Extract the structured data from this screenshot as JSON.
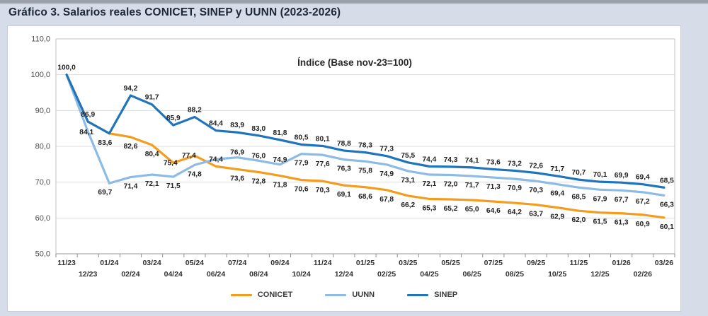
{
  "page": {
    "heading": "Gráfico 3. Salarios reales CONICET, SINEP y UUNN (2023-2026)"
  },
  "chart_data": {
    "type": "line",
    "title": "Índice (Base nov-23=100)",
    "grid": true,
    "legend_position": "bottom",
    "x_categories": [
      "11/23",
      "12/23",
      "01/24",
      "02/24",
      "03/24",
      "04/24",
      "05/24",
      "06/24",
      "07/24",
      "08/24",
      "09/24",
      "10/24",
      "11/24",
      "12/24",
      "01/25",
      "02/25",
      "03/25",
      "04/25",
      "05/25",
      "06/25",
      "07/25",
      "08/25",
      "09/25",
      "10/25",
      "11/25",
      "12/25",
      "01/26",
      "02/26",
      "03/26"
    ],
    "y_axis": {
      "min": 50,
      "max": 110,
      "step": 10,
      "tick_labels": [
        "110,0",
        "100,0",
        "90,0",
        "80,0",
        "70,0",
        "60,0",
        "50,0"
      ]
    },
    "colors": {
      "conicet": "#f39c1e",
      "uunn": "#8cbbe6",
      "sinep": "#1f74bc",
      "gridline": "#dcdcdc",
      "axis": "#8c8c8c",
      "label_text": "#212121"
    },
    "series": [
      {
        "name": "CONICET",
        "color": "#f39c1e",
        "points": [
          {
            "v": 100.0
          },
          {
            "v": 86.9
          },
          {
            "v": 83.6
          },
          {
            "v": 82.6,
            "l": "82,6",
            "p": "b"
          },
          {
            "v": 80.4,
            "l": "80,4",
            "p": "b"
          },
          {
            "v": 75.4,
            "l": "75,4",
            "o": 3,
            "dx": -4
          },
          {
            "v": 77.4,
            "l": "77,4",
            "o": 3,
            "dx": -8
          },
          {
            "v": 74.4,
            "l": "74,4",
            "p": "a"
          },
          {
            "v": 73.6,
            "l": "73,6",
            "p": "b"
          },
          {
            "v": 72.8,
            "l": "72,8",
            "p": "b"
          },
          {
            "v": 71.8,
            "l": "71,8",
            "p": "b"
          },
          {
            "v": 70.6,
            "l": "70,6",
            "p": "b"
          },
          {
            "v": 70.3,
            "l": "70,3",
            "p": "b"
          },
          {
            "v": 69.1,
            "l": "69,1",
            "p": "b"
          },
          {
            "v": 68.6,
            "l": "68,6",
            "p": "b"
          },
          {
            "v": 67.8,
            "l": "67,8",
            "p": "b"
          },
          {
            "v": 66.2,
            "l": "66,2",
            "p": "b"
          },
          {
            "v": 65.3,
            "l": "65,3",
            "p": "b"
          },
          {
            "v": 65.2,
            "l": "65,2",
            "p": "b"
          },
          {
            "v": 65.0,
            "l": "65,0",
            "p": "b"
          },
          {
            "v": 64.6,
            "l": "64,6",
            "p": "b"
          },
          {
            "v": 64.2,
            "l": "64,2",
            "p": "b"
          },
          {
            "v": 63.7,
            "l": "63,7",
            "p": "b"
          },
          {
            "v": 62.9,
            "l": "62,9",
            "p": "b"
          },
          {
            "v": 62.0,
            "l": "62,0",
            "p": "b"
          },
          {
            "v": 61.5,
            "l": "61,5",
            "p": "b"
          },
          {
            "v": 61.3,
            "l": "61,3",
            "p": "b"
          },
          {
            "v": 60.9,
            "l": "60,9",
            "p": "b"
          },
          {
            "v": 60.1,
            "l": "60,1",
            "p": "b",
            "dx": 4
          }
        ]
      },
      {
        "name": "UUNN",
        "color": "#8cbbe6",
        "points": [
          {
            "v": 100.0
          },
          {
            "v": 84.1,
            "l": "84,1",
            "p": "c",
            "dx": -2
          },
          {
            "v": 69.7,
            "l": "69,7",
            "p": "b",
            "dx": -6
          },
          {
            "v": 71.4,
            "l": "71,4",
            "p": "b"
          },
          {
            "v": 72.1,
            "l": "72,1",
            "p": "b"
          },
          {
            "v": 71.5,
            "l": "71,5",
            "p": "b"
          },
          {
            "v": 74.8,
            "l": "74,8",
            "p": "b"
          },
          {
            "v": 76.4
          },
          {
            "v": 76.9,
            "l": "76,9",
            "o": -4
          },
          {
            "v": 76.0,
            "l": "76,0",
            "o": -4
          },
          {
            "v": 74.9,
            "l": "74,9",
            "o": -4
          },
          {
            "v": 77.9,
            "l": "77,9",
            "p": "b"
          },
          {
            "v": 77.6,
            "l": "77,6",
            "p": "b"
          },
          {
            "v": 76.3,
            "l": "76,3",
            "p": "b"
          },
          {
            "v": 75.8,
            "l": "75,8",
            "p": "b"
          },
          {
            "v": 74.9,
            "l": "74,9",
            "p": "b"
          },
          {
            "v": 73.1,
            "l": "73,1",
            "p": "b"
          },
          {
            "v": 72.1,
            "l": "72,1",
            "p": "b"
          },
          {
            "v": 72.0,
            "l": "72,0",
            "p": "b"
          },
          {
            "v": 71.7,
            "l": "71,7",
            "p": "b"
          },
          {
            "v": 71.3,
            "l": "71,3",
            "p": "b"
          },
          {
            "v": 70.9,
            "l": "70,9",
            "p": "b"
          },
          {
            "v": 70.3,
            "l": "70,3",
            "p": "b"
          },
          {
            "v": 69.4,
            "l": "69,4",
            "p": "b"
          },
          {
            "v": 68.5,
            "l": "68,5",
            "p": "b"
          },
          {
            "v": 67.9,
            "l": "67,9",
            "p": "b"
          },
          {
            "v": 67.7,
            "l": "67,7",
            "p": "b"
          },
          {
            "v": 67.2,
            "l": "67,2",
            "p": "b"
          },
          {
            "v": 66.3,
            "l": "66,3",
            "p": "b",
            "dx": 4
          }
        ]
      },
      {
        "name": "SINEP",
        "color": "#1f74bc",
        "points": [
          {
            "v": 100.0,
            "l": "100,0",
            "p": "a"
          },
          {
            "v": 86.9,
            "l": "86,9",
            "p": "a"
          },
          {
            "v": 83.6,
            "l": "83,6",
            "p": "b",
            "dx": -6
          },
          {
            "v": 94.2,
            "l": "94,2",
            "p": "a"
          },
          {
            "v": 91.7,
            "l": "91,7",
            "p": "a"
          },
          {
            "v": 85.9,
            "l": "85,9",
            "p": "a"
          },
          {
            "v": 88.2,
            "l": "88,2",
            "p": "a"
          },
          {
            "v": 84.4,
            "l": "84,4",
            "p": "a"
          },
          {
            "v": 83.9,
            "l": "83,9",
            "p": "a"
          },
          {
            "v": 83.0,
            "l": "83,0",
            "p": "a"
          },
          {
            "v": 81.8,
            "l": "81,8",
            "p": "a"
          },
          {
            "v": 80.5,
            "l": "80,5",
            "p": "a"
          },
          {
            "v": 80.1,
            "l": "80,1",
            "p": "a"
          },
          {
            "v": 78.8,
            "l": "78,8",
            "p": "a"
          },
          {
            "v": 78.3,
            "l": "78,3",
            "p": "a"
          },
          {
            "v": 77.3,
            "l": "77,3",
            "p": "a"
          },
          {
            "v": 75.5,
            "l": "75,5",
            "p": "a"
          },
          {
            "v": 74.4,
            "l": "74,4",
            "p": "a"
          },
          {
            "v": 74.3,
            "l": "74,3",
            "p": "a"
          },
          {
            "v": 74.1,
            "l": "74,1",
            "p": "a"
          },
          {
            "v": 73.6,
            "l": "73,6",
            "p": "a"
          },
          {
            "v": 73.2,
            "l": "73,2",
            "p": "a"
          },
          {
            "v": 72.6,
            "l": "72,6",
            "p": "a"
          },
          {
            "v": 71.7,
            "l": "71,7",
            "p": "a"
          },
          {
            "v": 70.7,
            "l": "70,7",
            "p": "a"
          },
          {
            "v": 70.1,
            "l": "70,1",
            "p": "a"
          },
          {
            "v": 69.9,
            "l": "69,9",
            "p": "a"
          },
          {
            "v": 69.4,
            "l": "69,4",
            "p": "a"
          },
          {
            "v": 68.5,
            "l": "68,5",
            "p": "a",
            "dx": 4
          }
        ]
      }
    ]
  }
}
